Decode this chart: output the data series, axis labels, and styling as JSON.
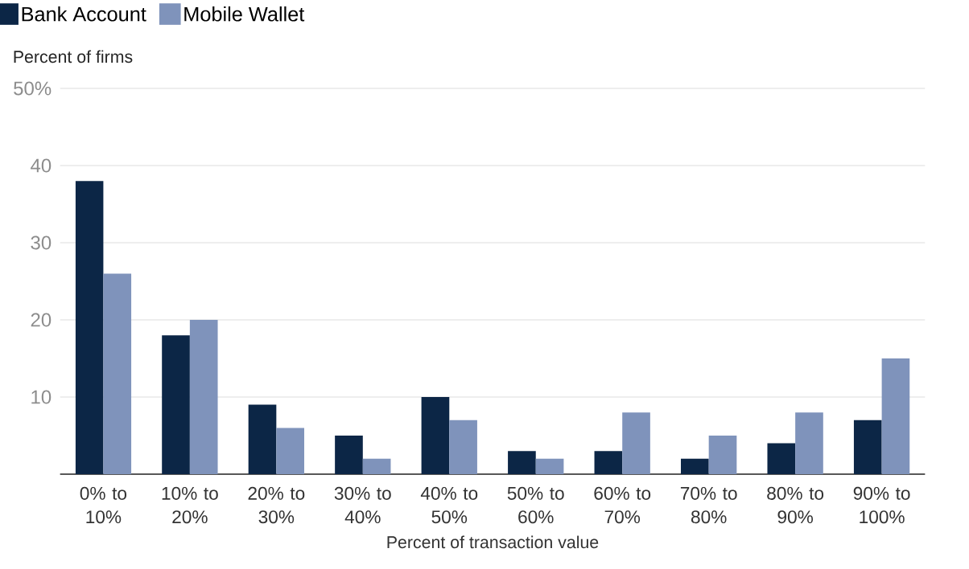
{
  "chart_data": {
    "type": "bar",
    "categories": [
      "0% to 10%",
      "10% to 20%",
      "20% to 30%",
      "30% to 40%",
      "40% to 50%",
      "50% to 60%",
      "60% to 70%",
      "70% to 80%",
      "80% to 90%",
      "90% to 100%"
    ],
    "series": [
      {
        "name": "Bank Account",
        "color": "#0c2646",
        "values": [
          38,
          18,
          9,
          5,
          10,
          3,
          3,
          2,
          4,
          7
        ]
      },
      {
        "name": "Mobile Wallet",
        "color": "#7f93bb",
        "values": [
          26,
          20,
          6,
          2,
          7,
          2,
          8,
          5,
          8,
          15
        ]
      }
    ],
    "ylabel": "Percent of firms",
    "xlabel": "Percent of transaction value",
    "ylim": [
      0,
      50
    ],
    "yticks": [
      {
        "value": 0,
        "label": null
      },
      10,
      20,
      30,
      40,
      {
        "value": 50,
        "label": "50%"
      }
    ],
    "grid": "y",
    "legend": "top left"
  }
}
